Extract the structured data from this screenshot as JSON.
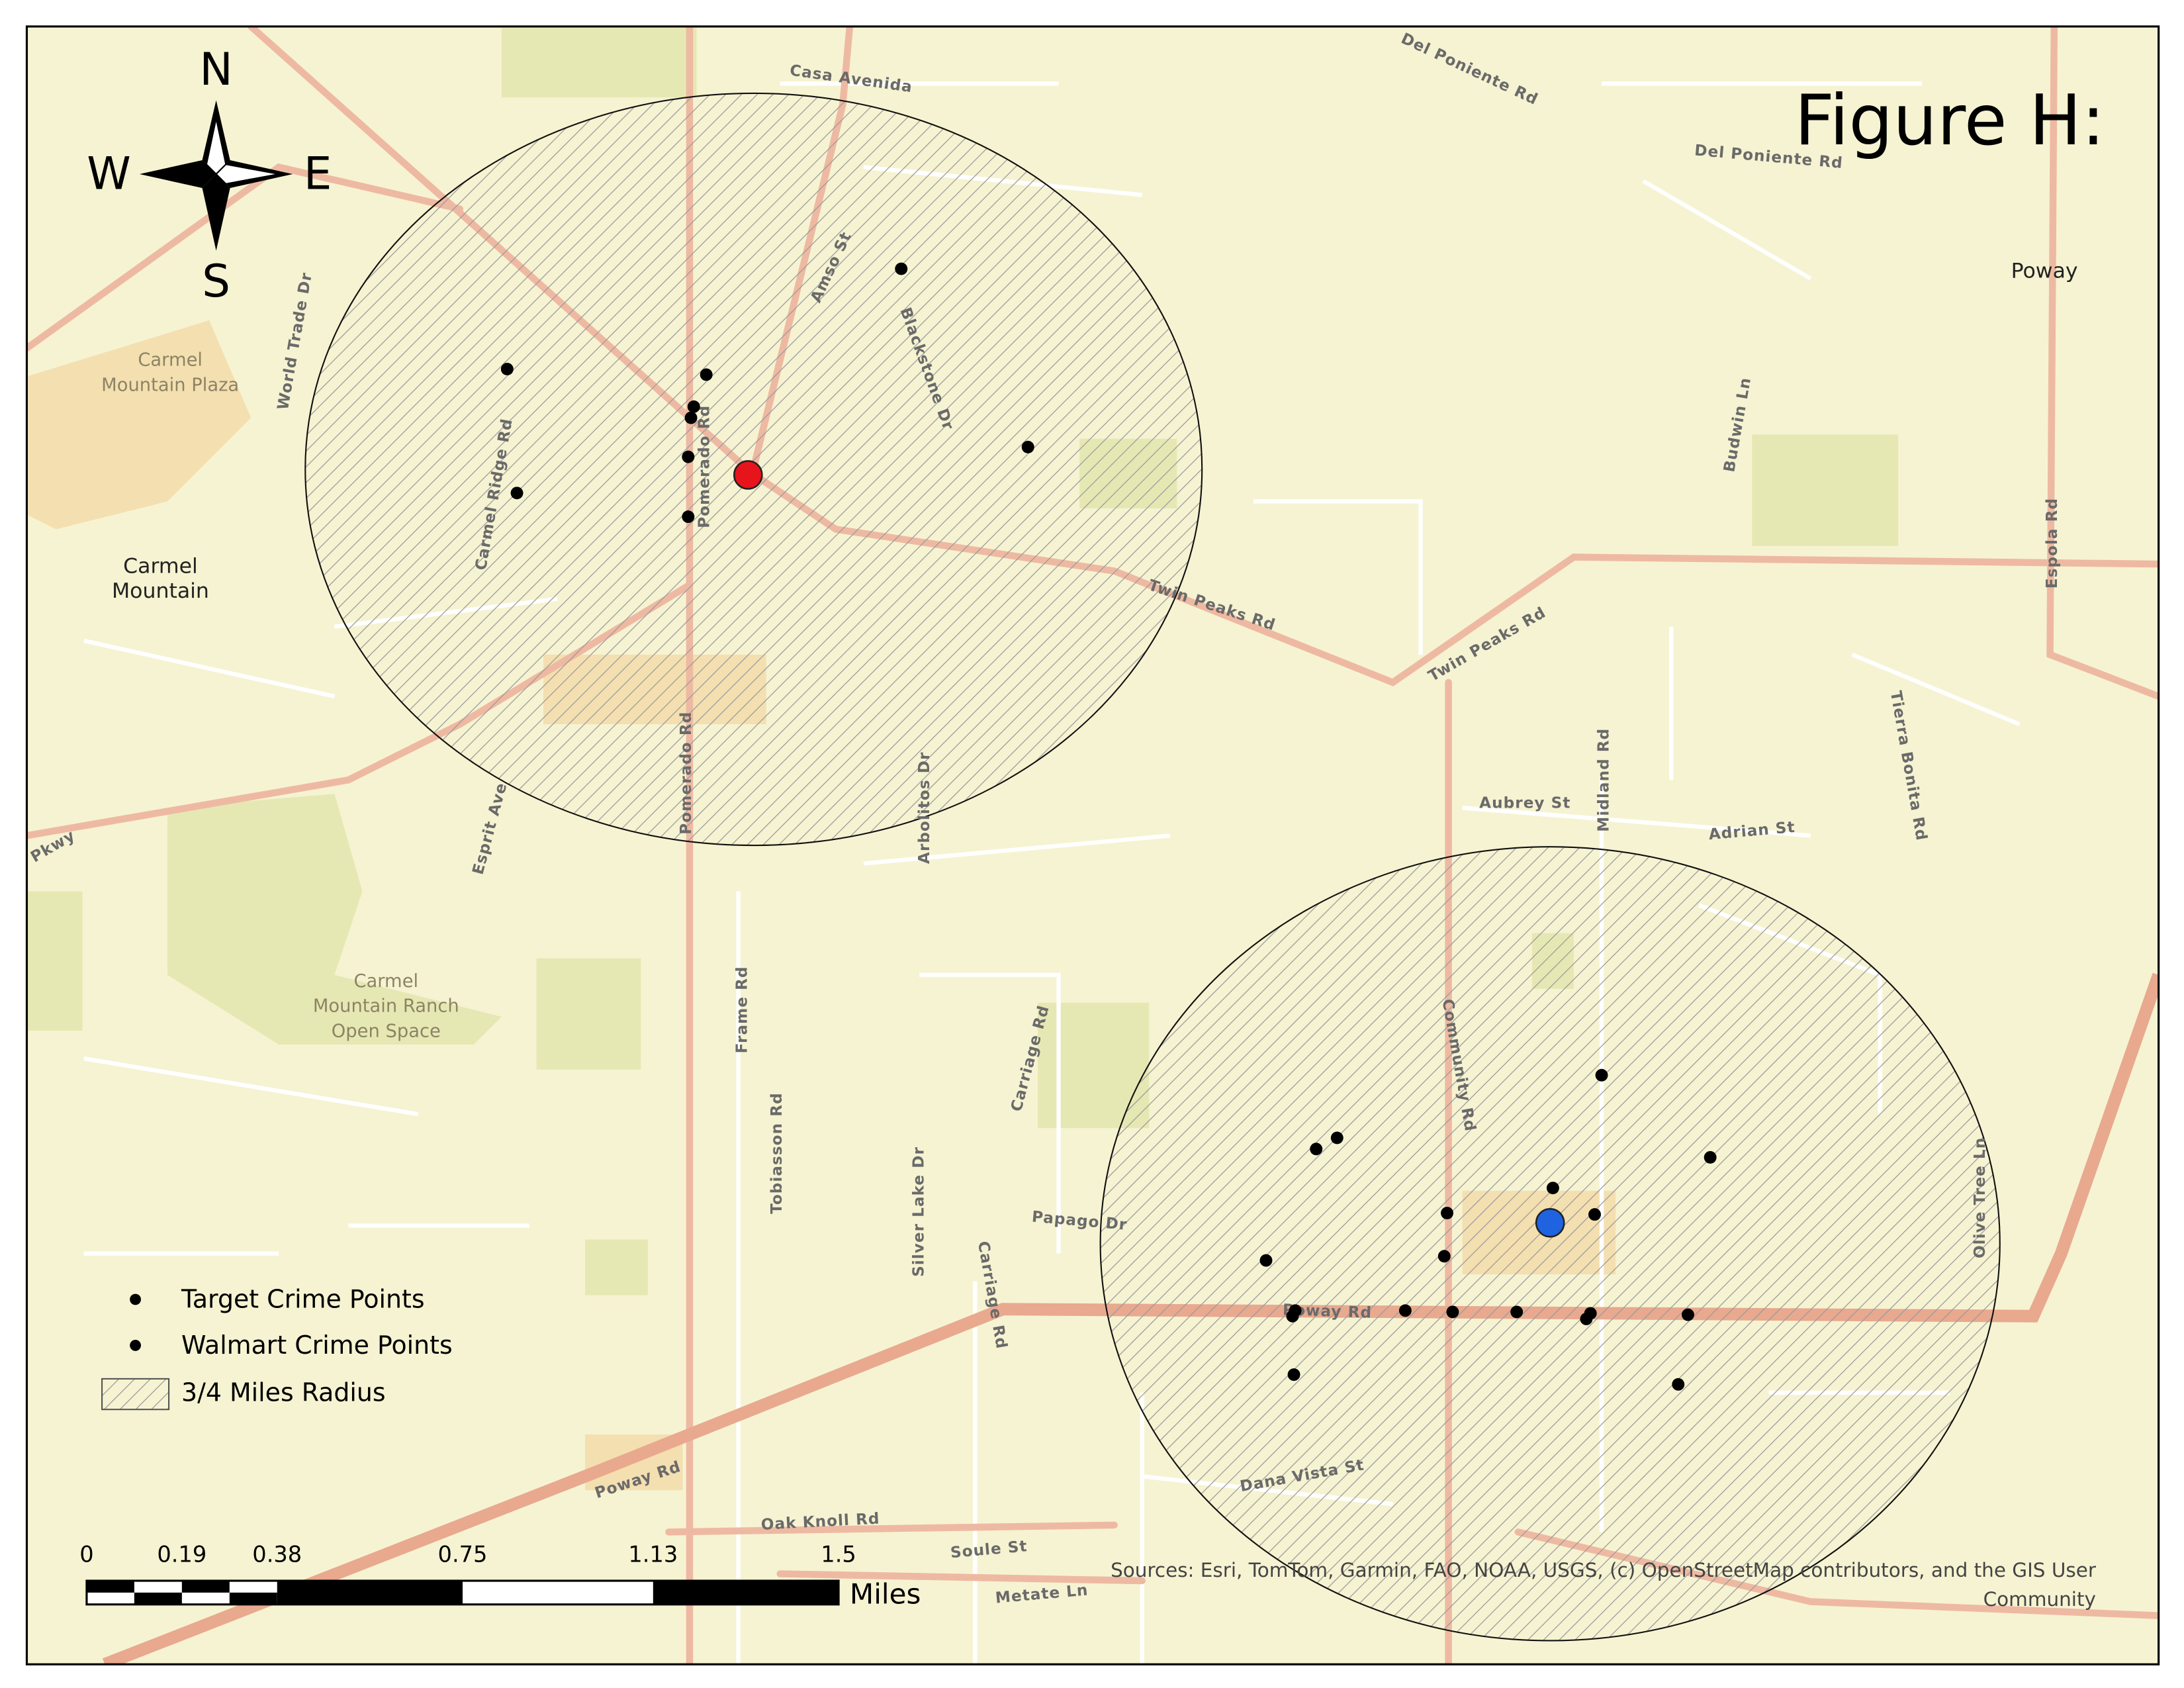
{
  "title": "Figure H:",
  "compass": {
    "north": "N",
    "south": "S",
    "east": "E",
    "west": "W"
  },
  "legend": {
    "items": [
      "Target Crime Points",
      "Walmart  Crime Points",
      "3/4 Miles Radius"
    ]
  },
  "scale_bar": {
    "ticks": [
      0,
      0.19,
      0.38,
      0.75,
      1.13,
      1.5
    ],
    "unit": "Miles"
  },
  "sources": [
    "Sources:  Esri, TomTom, Garmin, FAO, NOAA, USGS, (c) OpenStreetMap contributors, and the GIS User",
    "Community"
  ],
  "places": [
    {
      "lines": [
        "Poway"
      ]
    },
    {
      "lines": [
        "Carmel",
        "Mountain Plaza"
      ]
    },
    {
      "lines": [
        "Carmel",
        "Mountain"
      ]
    },
    {
      "lines": [
        "Carmel",
        "Mountain Ranch",
        "Open Space"
      ]
    }
  ],
  "roads": [
    "Casa Avenida",
    "Del Poniente Rd",
    "Del Poniente Rd",
    "Twin Peaks Rd",
    "Twin Peaks Rd",
    "Pomerado Rd",
    "Pomerado Rd",
    "Poway Rd",
    "Poway Rd",
    "Espola Rd",
    "Midland Rd",
    "Community Rd",
    "Aubrey St",
    "Adrian St",
    "Frame Rd",
    "Tobiasson Rd",
    "Arbolitos Dr",
    "Carriage Rd",
    "Carriage Rd",
    "Silver Lake Dr",
    "Papago Dr",
    "Oak Knoll Rd",
    "Soule St",
    "Metate Ln",
    "Esprit Ave",
    "Carmel Ridge Rd",
    "World Trade Dr",
    "Budwin Ln",
    "Tierra Bonita Rd",
    "Olive Tree Ln",
    "Blackstone Dr",
    "Amso St",
    "Dana Vista St",
    "Pkwy"
  ]
}
